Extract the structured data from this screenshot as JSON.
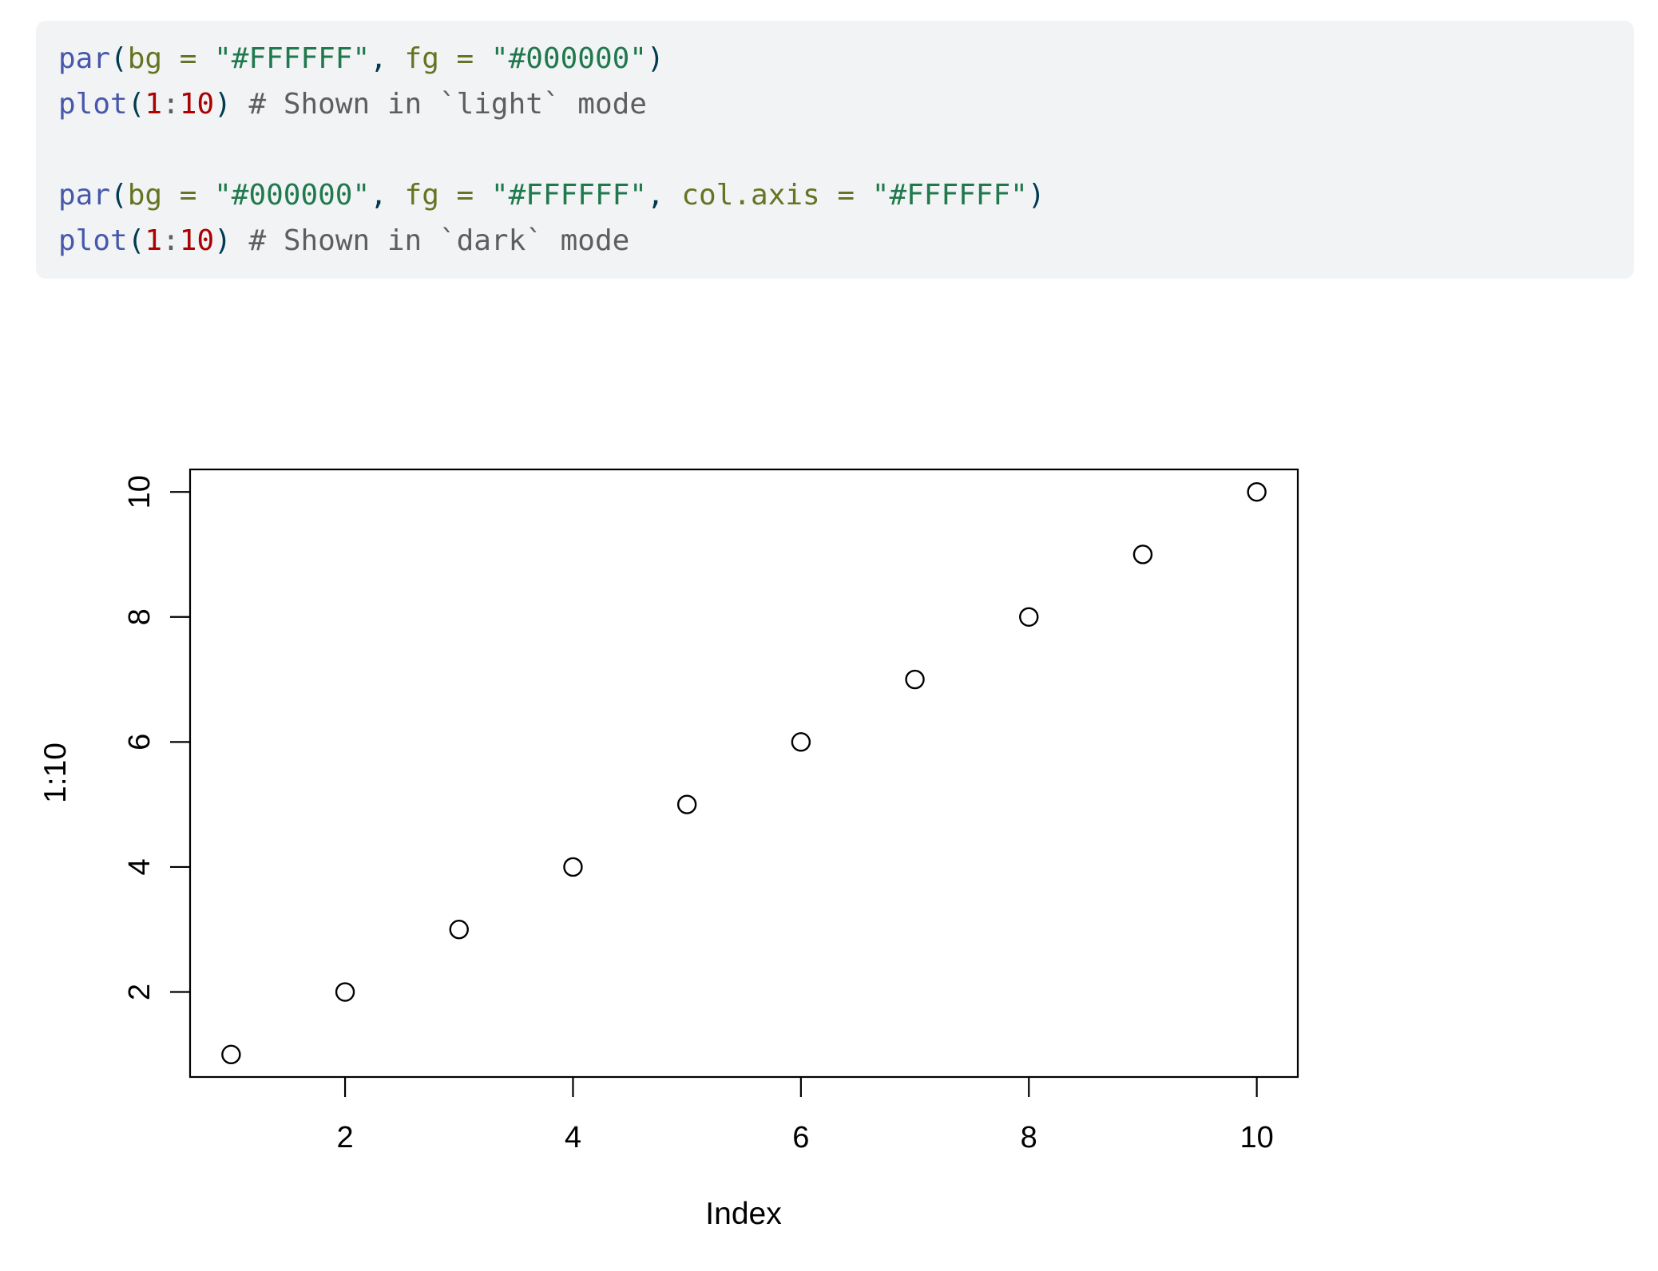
{
  "code_block": {
    "background": "#f1f3f5",
    "default_color": "#003B4F",
    "palette": {
      "function": "#4758AB",
      "punct": "#003B4F",
      "argument": "#657422",
      "string": "#20794D",
      "number": "#AD0000",
      "operator": "#5E5E5E",
      "comment": "#5E5E5E"
    },
    "lines": [
      [
        {
          "c": "function",
          "t": "par"
        },
        {
          "c": "punct",
          "t": "("
        },
        {
          "c": "argument",
          "t": "bg = "
        },
        {
          "c": "string",
          "t": "\"#FFFFFF\""
        },
        {
          "c": "punct",
          "t": ", "
        },
        {
          "c": "argument",
          "t": "fg = "
        },
        {
          "c": "string",
          "t": "\"#000000\""
        },
        {
          "c": "punct",
          "t": ")"
        }
      ],
      [
        {
          "c": "function",
          "t": "plot"
        },
        {
          "c": "punct",
          "t": "("
        },
        {
          "c": "number",
          "t": "1"
        },
        {
          "c": "operator",
          "t": ":"
        },
        {
          "c": "number",
          "t": "10"
        },
        {
          "c": "punct",
          "t": ") "
        },
        {
          "c": "comment",
          "t": "# Shown in `light` mode"
        }
      ],
      [],
      [
        {
          "c": "function",
          "t": "par"
        },
        {
          "c": "punct",
          "t": "("
        },
        {
          "c": "argument",
          "t": "bg = "
        },
        {
          "c": "string",
          "t": "\"#000000\""
        },
        {
          "c": "punct",
          "t": ", "
        },
        {
          "c": "argument",
          "t": "fg = "
        },
        {
          "c": "string",
          "t": "\"#FFFFFF\""
        },
        {
          "c": "punct",
          "t": ", "
        },
        {
          "c": "argument",
          "t": "col.axis = "
        },
        {
          "c": "string",
          "t": "\"#FFFFFF\""
        },
        {
          "c": "punct",
          "t": ")"
        }
      ],
      [
        {
          "c": "function",
          "t": "plot"
        },
        {
          "c": "punct",
          "t": "("
        },
        {
          "c": "number",
          "t": "1"
        },
        {
          "c": "operator",
          "t": ":"
        },
        {
          "c": "number",
          "t": "10"
        },
        {
          "c": "punct",
          "t": ") "
        },
        {
          "c": "comment",
          "t": "# Shown in `dark` mode"
        }
      ]
    ]
  },
  "chart_data": {
    "type": "scatter",
    "x": [
      1,
      2,
      3,
      4,
      5,
      6,
      7,
      8,
      9,
      10
    ],
    "y": [
      1,
      2,
      3,
      4,
      5,
      6,
      7,
      8,
      9,
      10
    ],
    "xlabel": "Index",
    "ylabel": "1:10",
    "x_ticks": [
      2,
      4,
      6,
      8,
      10
    ],
    "y_ticks": [
      2,
      4,
      6,
      8,
      10
    ],
    "x_tick_labels": [
      "2",
      "4",
      "6",
      "8",
      "10"
    ],
    "y_tick_labels": [
      "2",
      "4",
      "6",
      "8",
      "10"
    ],
    "xlim": [
      0.64,
      10.36
    ],
    "ylim": [
      0.64,
      10.36
    ],
    "marker": "open-circle",
    "foreground": "#000000",
    "background": "#FFFFFF",
    "grid": false,
    "legend": null
  }
}
